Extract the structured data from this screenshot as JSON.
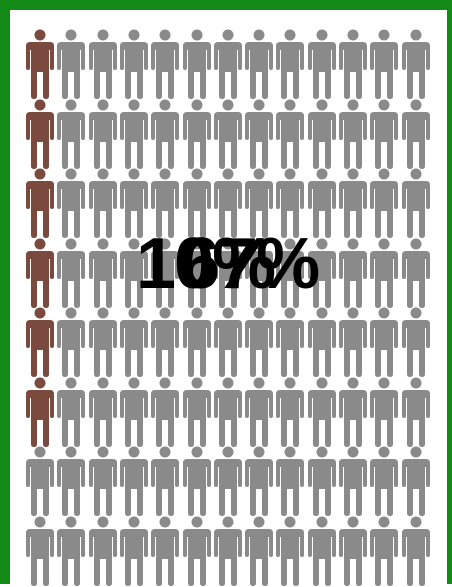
{
  "figure": {
    "rows": 8,
    "columns": 13,
    "highlighted_count": 6,
    "highlighted_column": 1,
    "colors": {
      "frame": "#138a16",
      "highlight": "#7a4a3f",
      "base": "#8a8a8a",
      "background": "#ffffff",
      "text": "#000000"
    },
    "icon": "person-icon"
  },
  "overlay": {
    "label_a": "10%",
    "label_b": "67%"
  }
}
